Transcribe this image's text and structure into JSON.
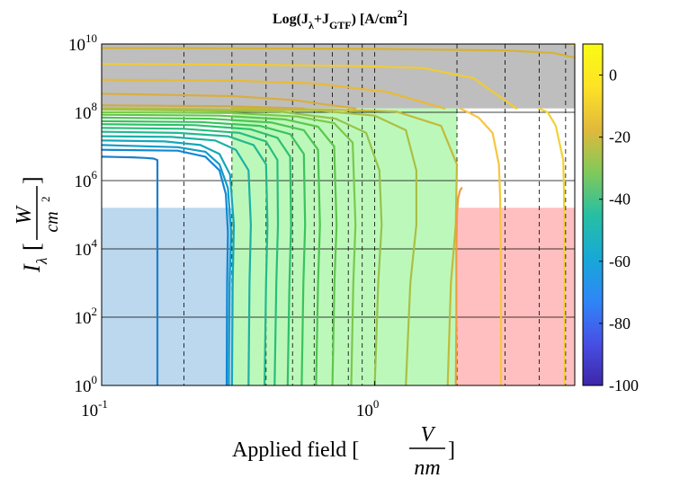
{
  "chart_data": {
    "type": "line",
    "title": {
      "prefix": "Log(J",
      "sub1": "λ",
      "mid": "+J",
      "sub2": "GTF",
      "suffix": ") [A/cm",
      "sup": "2",
      "end": "]"
    },
    "xlabel": {
      "text": "Applied field [",
      "num": "V",
      "den": "nm",
      "close": "]"
    },
    "ylabel": {
      "sym": "I",
      "sub": "λ",
      "open": "[",
      "num": "W",
      "den": "cm",
      "sup": "2",
      "close": "]"
    },
    "x_scale": "log",
    "y_scale": "log",
    "xlim": [
      0.1,
      5.4
    ],
    "ylim": [
      1,
      10000000000.0
    ],
    "x_ticks": [
      {
        "value": 0.1,
        "base": "10",
        "exp": "-1"
      },
      {
        "value": 1,
        "base": "10",
        "exp": "0"
      }
    ],
    "y_ticks": [
      {
        "value": 1,
        "base": "10",
        "exp": "0"
      },
      {
        "value": 100,
        "base": "10",
        "exp": "2"
      },
      {
        "value": 10000,
        "base": "10",
        "exp": "4"
      },
      {
        "value": 1000000,
        "base": "10",
        "exp": "6"
      },
      {
        "value": 100000000,
        "base": "10",
        "exp": "8"
      },
      {
        "value": 10000000000,
        "base": "10",
        "exp": "10"
      }
    ],
    "horizontal_grid": [
      1,
      100,
      10000,
      1000000,
      100000000
    ],
    "dashed_verticals": [
      0.2,
      0.3,
      0.4,
      0.5,
      0.6,
      0.7,
      0.8,
      0.9,
      1.0,
      2.0,
      3.0,
      4.0,
      5.0
    ],
    "regions": [
      {
        "name": "gray",
        "x": [
          0.1,
          5.4
        ],
        "y": [
          130000000.0,
          10000000000.0
        ],
        "color": "#bebebe"
      },
      {
        "name": "blue",
        "x": [
          0.1,
          0.3
        ],
        "y": [
          1,
          160000.0
        ],
        "color": "#bcd8ee"
      },
      {
        "name": "green",
        "x": [
          0.3,
          2.0
        ],
        "y": [
          1,
          130000000.0
        ],
        "color": "#bdf8bb"
      },
      {
        "name": "red",
        "x": [
          2.0,
          5.4
        ],
        "y": [
          1,
          160000.0
        ],
        "color": "#ffbfc0"
      }
    ],
    "colorbar": {
      "range": [
        -100,
        10
      ],
      "ticks": [
        0,
        -20,
        -40,
        -60,
        -80,
        -100
      ],
      "colormap": [
        "#3e26a8",
        "#4750e6",
        "#2e87f7",
        "#17a9d6",
        "#27bfa2",
        "#81c95a",
        "#e1b93b",
        "#fde325",
        "#f9fb15"
      ]
    },
    "series": [
      {
        "color": "#1f7fc9",
        "points": [
          [
            0.16,
            1
          ],
          [
            0.16,
            4000000.0
          ],
          [
            0.155,
            4400000.0
          ],
          [
            0.145,
            4600000.0
          ],
          [
            0.13,
            4800000.0
          ],
          [
            0.1,
            5000000.0
          ]
        ]
      },
      {
        "color": "#1387d3",
        "points": [
          [
            0.287,
            1
          ],
          [
            0.288,
            1000.0
          ],
          [
            0.29,
            30000.0
          ],
          [
            0.285,
            400000.0
          ],
          [
            0.27,
            2000000.0
          ],
          [
            0.24,
            5000000.0
          ],
          [
            0.19,
            7500000.0
          ],
          [
            0.1,
            8000000.0
          ]
        ]
      },
      {
        "color": "#119cc9",
        "points": [
          [
            0.292,
            1
          ],
          [
            0.294,
            1000.0
          ],
          [
            0.298,
            30000.0
          ],
          [
            0.29,
            600000.0
          ],
          [
            0.27,
            3000000.0
          ],
          [
            0.24,
            7000000.0
          ],
          [
            0.19,
            9500000.0
          ],
          [
            0.1,
            11000000.0
          ]
        ]
      },
      {
        "color": "#16a6b9",
        "points": [
          [
            0.3,
            1
          ],
          [
            0.302,
            1000.0
          ],
          [
            0.305,
            50000.0
          ],
          [
            0.295,
            1500000.0
          ],
          [
            0.27,
            6000000.0
          ],
          [
            0.23,
            11000000.0
          ],
          [
            0.17,
            14000000.0
          ],
          [
            0.1,
            15000000.0
          ]
        ]
      },
      {
        "color": "#1bb1a4",
        "points": [
          [
            0.345,
            1
          ],
          [
            0.348,
            1000.0
          ],
          [
            0.352,
            50000.0
          ],
          [
            0.345,
            2000000.0
          ],
          [
            0.31,
            8000000.0
          ],
          [
            0.26,
            15000000.0
          ],
          [
            0.18,
            19000000.0
          ],
          [
            0.1,
            20000000.0
          ]
        ]
      },
      {
        "color": "#22b98f",
        "points": [
          [
            0.395,
            1
          ],
          [
            0.4,
            1000.0
          ],
          [
            0.405,
            50000.0
          ],
          [
            0.4,
            3000000.0
          ],
          [
            0.36,
            11000000.0
          ],
          [
            0.29,
            20000000.0
          ],
          [
            0.19,
            25000000.0
          ],
          [
            0.1,
            27000000.0
          ]
        ]
      },
      {
        "color": "#27be7d",
        "points": [
          [
            0.43,
            1
          ],
          [
            0.436,
            1000.0
          ],
          [
            0.442,
            50000.0
          ],
          [
            0.44,
            4000000.0
          ],
          [
            0.4,
            14000000.0
          ],
          [
            0.32,
            25000000.0
          ],
          [
            0.2,
            33000000.0
          ],
          [
            0.1,
            35000000.0
          ]
        ]
      },
      {
        "color": "#2ec06c",
        "points": [
          [
            0.48,
            1
          ],
          [
            0.487,
            1000.0
          ],
          [
            0.494,
            50000.0
          ],
          [
            0.49,
            5000000.0
          ],
          [
            0.44,
            18000000.0
          ],
          [
            0.35,
            32000000.0
          ],
          [
            0.22,
            42000000.0
          ],
          [
            0.1,
            45000000.0
          ]
        ]
      },
      {
        "color": "#3bc35c",
        "points": [
          [
            0.54,
            1
          ],
          [
            0.548,
            1000.0
          ],
          [
            0.556,
            50000.0
          ],
          [
            0.55,
            6000000.0
          ],
          [
            0.49,
            23000000.0
          ],
          [
            0.38,
            40000000.0
          ],
          [
            0.23,
            52000000.0
          ],
          [
            0.1,
            55000000.0
          ]
        ]
      },
      {
        "color": "#4cc552",
        "points": [
          [
            0.61,
            1
          ],
          [
            0.62,
            1000.0
          ],
          [
            0.63,
            50000.0
          ],
          [
            0.62,
            8000000.0
          ],
          [
            0.55,
            30000000.0
          ],
          [
            0.42,
            50000000.0
          ],
          [
            0.25,
            65000000.0
          ],
          [
            0.1,
            70000000.0
          ]
        ]
      },
      {
        "color": "#5fc64c",
        "points": [
          [
            0.7,
            1
          ],
          [
            0.712,
            1000.0
          ],
          [
            0.725,
            50000.0
          ],
          [
            0.71,
            10000000.0
          ],
          [
            0.62,
            38000000.0
          ],
          [
            0.47,
            62000000.0
          ],
          [
            0.27,
            80000000.0
          ],
          [
            0.1,
            85000000.0
          ]
        ]
      },
      {
        "color": "#7ac94a",
        "points": [
          [
            0.82,
            1
          ],
          [
            0.835,
            1000.0
          ],
          [
            0.85,
            50000.0
          ],
          [
            0.83,
            13000000.0
          ],
          [
            0.71,
            48000000.0
          ],
          [
            0.52,
            75000000.0
          ],
          [
            0.3,
            95000000.0
          ],
          [
            0.1,
            100000000.0
          ]
        ]
      },
      {
        "color": "#96c448",
        "points": [
          [
            1.0,
            1
          ],
          [
            1.03,
            1000.0
          ],
          [
            1.06,
            50000.0
          ],
          [
            1.04,
            2000000.0
          ],
          [
            0.93,
            25000000.0
          ],
          [
            0.72,
            65000000.0
          ],
          [
            0.45,
            105000000.0
          ],
          [
            0.1,
            120000000.0
          ]
        ]
      },
      {
        "color": "#a9c042",
        "points": [
          [
            1.3,
            1
          ],
          [
            1.35,
            1000.0
          ],
          [
            1.42,
            50000.0
          ],
          [
            1.42,
            2000000.0
          ],
          [
            1.3,
            30000000.0
          ],
          [
            1.0,
            80000000.0
          ],
          [
            0.6,
            115000000.0
          ],
          [
            0.1,
            130000000.0
          ]
        ]
      },
      {
        "color": "#c2ba3b",
        "points": [
          [
            1.85,
            1
          ],
          [
            1.9,
            1000.0
          ],
          [
            1.98,
            50000.0
          ],
          [
            2.0,
            3000000.0
          ],
          [
            1.75,
            40000000.0
          ],
          [
            1.2,
            105000000.0
          ],
          [
            0.7,
            120000000.0
          ],
          [
            0.3,
            130000000.0
          ]
        ]
      },
      {
        "color": "#f19a43",
        "points": [
          [
            1.98,
            1
          ],
          [
            1.99,
            100.0
          ],
          [
            1.99,
            10000.0
          ],
          [
            2.0,
            100000.0
          ],
          [
            2.02,
            300000.0
          ],
          [
            2.05,
            500000.0
          ],
          [
            2.08,
            600000.0
          ]
        ]
      },
      {
        "color": "#f7c63e",
        "points": [
          [
            2.9,
            1
          ],
          [
            2.9,
            1000.0
          ],
          [
            2.88,
            300000.0
          ],
          [
            2.85,
            3000000.0
          ],
          [
            2.7,
            25000000.0
          ],
          [
            2.4,
            70000000.0
          ],
          [
            2.2,
            100000000.0
          ],
          [
            2.05,
            130000000.0
          ]
        ]
      },
      {
        "color": "#f0d236",
        "points": [
          [
            4.95,
            1
          ],
          [
            4.95,
            1000.0
          ],
          [
            4.93,
            500000.0
          ],
          [
            4.9,
            4000000.0
          ],
          [
            4.6,
            40000000.0
          ],
          [
            4.3,
            100000000.0
          ],
          [
            4.0,
            130000000.0
          ]
        ]
      },
      {
        "color": "#f1cb34",
        "points": [
          [
            3.3,
            130000000.0
          ],
          [
            2.3,
            1000000000.0
          ],
          [
            1.5,
            2000000000.0
          ],
          [
            0.8,
            2300000000.0
          ],
          [
            0.3,
            2500000000.0
          ],
          [
            0.1,
            2600000000.0
          ]
        ]
      },
      {
        "color": "#e9ba35",
        "points": [
          [
            1.8,
            130000000.0
          ],
          [
            1.1,
            400000000.0
          ],
          [
            0.6,
            700000000.0
          ],
          [
            0.3,
            850000000.0
          ],
          [
            0.1,
            900000000.0
          ]
        ]
      },
      {
        "color": "#d9ae3f",
        "points": [
          [
            0.85,
            130000000.0
          ],
          [
            0.5,
            230000000.0
          ],
          [
            0.3,
            300000000.0
          ],
          [
            0.1,
            350000000.0
          ]
        ]
      },
      {
        "color": "#ceaa48",
        "points": [
          [
            0.55,
            130000000.0
          ],
          [
            0.3,
            150000000.0
          ],
          [
            0.1,
            160000000.0
          ]
        ]
      },
      {
        "color": "#d6b236",
        "points": [
          [
            5.4,
            4000000000.0
          ],
          [
            4.5,
            5500000000.0
          ],
          [
            3.0,
            6500000000.0
          ],
          [
            1.0,
            7200000000.0
          ],
          [
            0.3,
            7500000000.0
          ],
          [
            0.1,
            7600000000.0
          ]
        ]
      },
      {
        "color": "#f6df2a",
        "points": [
          [
            5.2,
            10000000000.0
          ],
          [
            5.3,
            9600000000.0
          ],
          [
            5.4,
            9500000000.0
          ]
        ]
      }
    ]
  }
}
